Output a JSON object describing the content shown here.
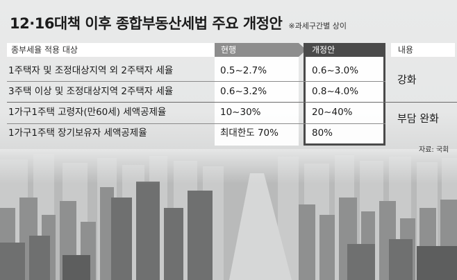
{
  "title": "12·16대책 이후 종합부동산세법 주요 개정안",
  "note": "※과세구간별 상이",
  "table": {
    "headers": {
      "label": "종부세율 적용 대상",
      "current": "현행",
      "revised": "개정안",
      "content": "내용"
    },
    "rows": [
      {
        "label": "1주택자 및 조정대상지역 외 2주택자 세율",
        "current": "0.5~2.7%",
        "revised": "0.6~3.0%"
      },
      {
        "label": "3주택 이상 및 조정대상지역 2주택자 세율",
        "current": "0.6~3.2%",
        "revised": "0.8~4.0%"
      },
      {
        "label": "1가구1주택 고령자(만60세) 세액공제율",
        "current": "10~30%",
        "revised": "20~40%"
      },
      {
        "label": "1가구1주택 장기보유자 세액공제율",
        "current": "최대한도 70%",
        "revised": "80%"
      }
    ],
    "content_groups": [
      "강화",
      "부담 완화"
    ]
  },
  "source": "자료: 국회"
}
